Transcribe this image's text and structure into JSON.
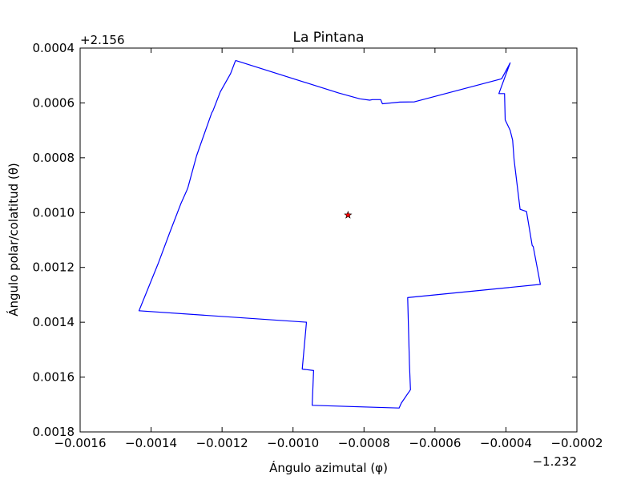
{
  "chart_data": {
    "type": "line",
    "title": "La Pintana",
    "xlabel": "Ángulo azimutal (φ)",
    "ylabel": "Ángulo polar/colatitud (θ)",
    "x_offset_label": "−1.232",
    "y_offset_label": "+2.156",
    "xlim": [
      -0.0016,
      -0.0002
    ],
    "ylim": [
      0.0004,
      0.0018
    ],
    "y_inverted": true,
    "grid": false,
    "x_ticks": [
      -0.0016,
      -0.0014,
      -0.0012,
      -0.001,
      -0.0008,
      -0.0006,
      -0.0004,
      -0.0002
    ],
    "x_tick_labels": [
      "−0.0016",
      "−0.0014",
      "−0.0012",
      "−0.0010",
      "−0.0008",
      "−0.0006",
      "−0.0004",
      "−0.0002"
    ],
    "y_ticks": [
      0.0004,
      0.0006,
      0.0008,
      0.001,
      0.0012,
      0.0014,
      0.0016,
      0.0018
    ],
    "y_tick_labels": [
      "0.0004",
      "0.0006",
      "0.0008",
      "0.0010",
      "0.0012",
      "0.0014",
      "0.0016",
      "0.0018"
    ],
    "series": [
      {
        "color": "#0000ff",
        "x": [
          -0.001162,
          -0.001176,
          -0.001205,
          -0.001226,
          -0.001229,
          -0.001264,
          -0.001272,
          -0.001296,
          -0.001299,
          -0.001316,
          -0.001348,
          -0.00138,
          -0.001434,
          -0.000962,
          -0.000974,
          -0.000942,
          -0.000946,
          -0.000701,
          -0.000695,
          -0.000669,
          -0.000672,
          -0.000677,
          -0.000303,
          -0.000323,
          -0.000326,
          -0.000342,
          -0.00036,
          -0.000377,
          -0.000381,
          -0.000388,
          -0.000402,
          -0.000404,
          -0.00042,
          -0.000388,
          -0.000412,
          -0.000658,
          -0.000699,
          -0.000748,
          -0.000753,
          -0.000776,
          -0.000784,
          -0.000812,
          -0.000871,
          -0.001162
        ],
        "y": [
          0.000445,
          0.000493,
          0.00056,
          0.00063,
          0.000636,
          0.000764,
          0.000793,
          0.000908,
          0.000918,
          0.000967,
          0.001075,
          0.001186,
          0.001358,
          0.0014,
          0.001571,
          0.001576,
          0.001703,
          0.001713,
          0.001695,
          0.001646,
          0.001552,
          0.00131,
          0.001262,
          0.001124,
          0.00112,
          0.000996,
          0.000988,
          0.000807,
          0.000736,
          0.0007,
          0.000662,
          0.000566,
          0.000566,
          0.000454,
          0.000512,
          0.000596,
          0.000597,
          0.000603,
          0.000588,
          0.000588,
          0.00059,
          0.000585,
          0.000564,
          0.000445
        ]
      }
    ],
    "marker": {
      "x": -0.000845,
      "y": 0.001009,
      "symbol": "star",
      "color": "#ff0000"
    }
  }
}
